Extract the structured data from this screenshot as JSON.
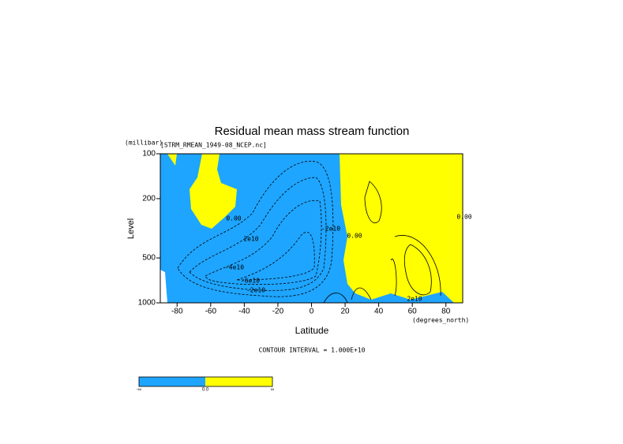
{
  "chart_data": {
    "type": "contour",
    "title": "Residual mean mass stream function",
    "subtitle": "[STRM_RMEAN_1949-08_NCEP.nc]",
    "y_unit": "(millibar)",
    "x_unit": "(degrees_north)",
    "x_label": "Latitude",
    "y_label": "Level",
    "note": "CONTOUR INTERVAL = 1.000E+10",
    "xlim": [
      -90,
      90
    ],
    "xticks": [
      -80,
      -60,
      -40,
      -20,
      0,
      20,
      40,
      60,
      80
    ],
    "ylim": [
      1000,
      100
    ],
    "yticks": [
      100,
      200,
      500,
      1000
    ],
    "log_y": true,
    "fill_colors": [
      "#1ea5ff",
      "#ffff00"
    ],
    "contour_labels": [
      "0.00",
      "2e10",
      "-4e10",
      "-6e10",
      "-2e10",
      "0.00",
      "2e10",
      "0.00",
      "-2e10"
    ],
    "colorbar_labels": [
      "-∞",
      "0.0",
      "∞"
    ]
  }
}
